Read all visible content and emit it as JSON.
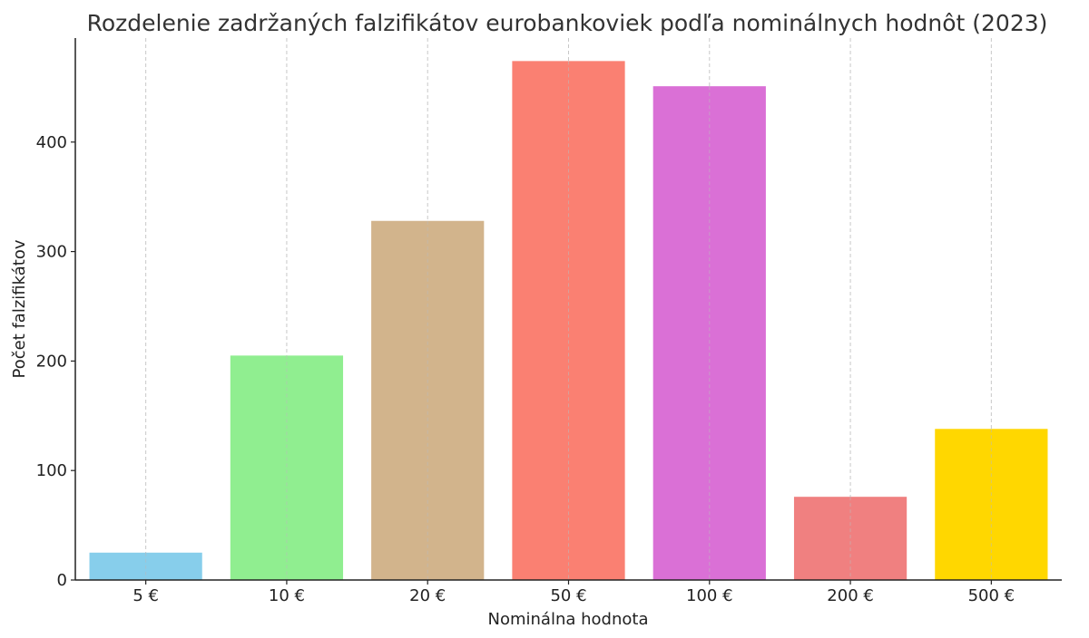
{
  "chart_data": {
    "type": "bar",
    "title": "Rozdelenie zadržaných falzifikátov eurobankoviek podľa nominálnych hodnôt (2023)",
    "xlabel": "Nominálna hodnota",
    "ylabel": "Počet falzifikátov",
    "categories": [
      "5 €",
      "10 €",
      "20 €",
      "50 €",
      "100 €",
      "200 €",
      "500 €"
    ],
    "values": [
      25,
      205,
      328,
      474,
      451,
      76,
      138
    ],
    "colors": [
      "#87ceeb",
      "#90ee90",
      "#d2b48c",
      "#fa8072",
      "#da70d6",
      "#f08080",
      "#ffd700"
    ],
    "ylim": [
      0,
      495
    ],
    "yticks": [
      0,
      100,
      200,
      300,
      400
    ],
    "grid": {
      "x": true,
      "y": false,
      "style": "dashed"
    },
    "legend": "none"
  }
}
